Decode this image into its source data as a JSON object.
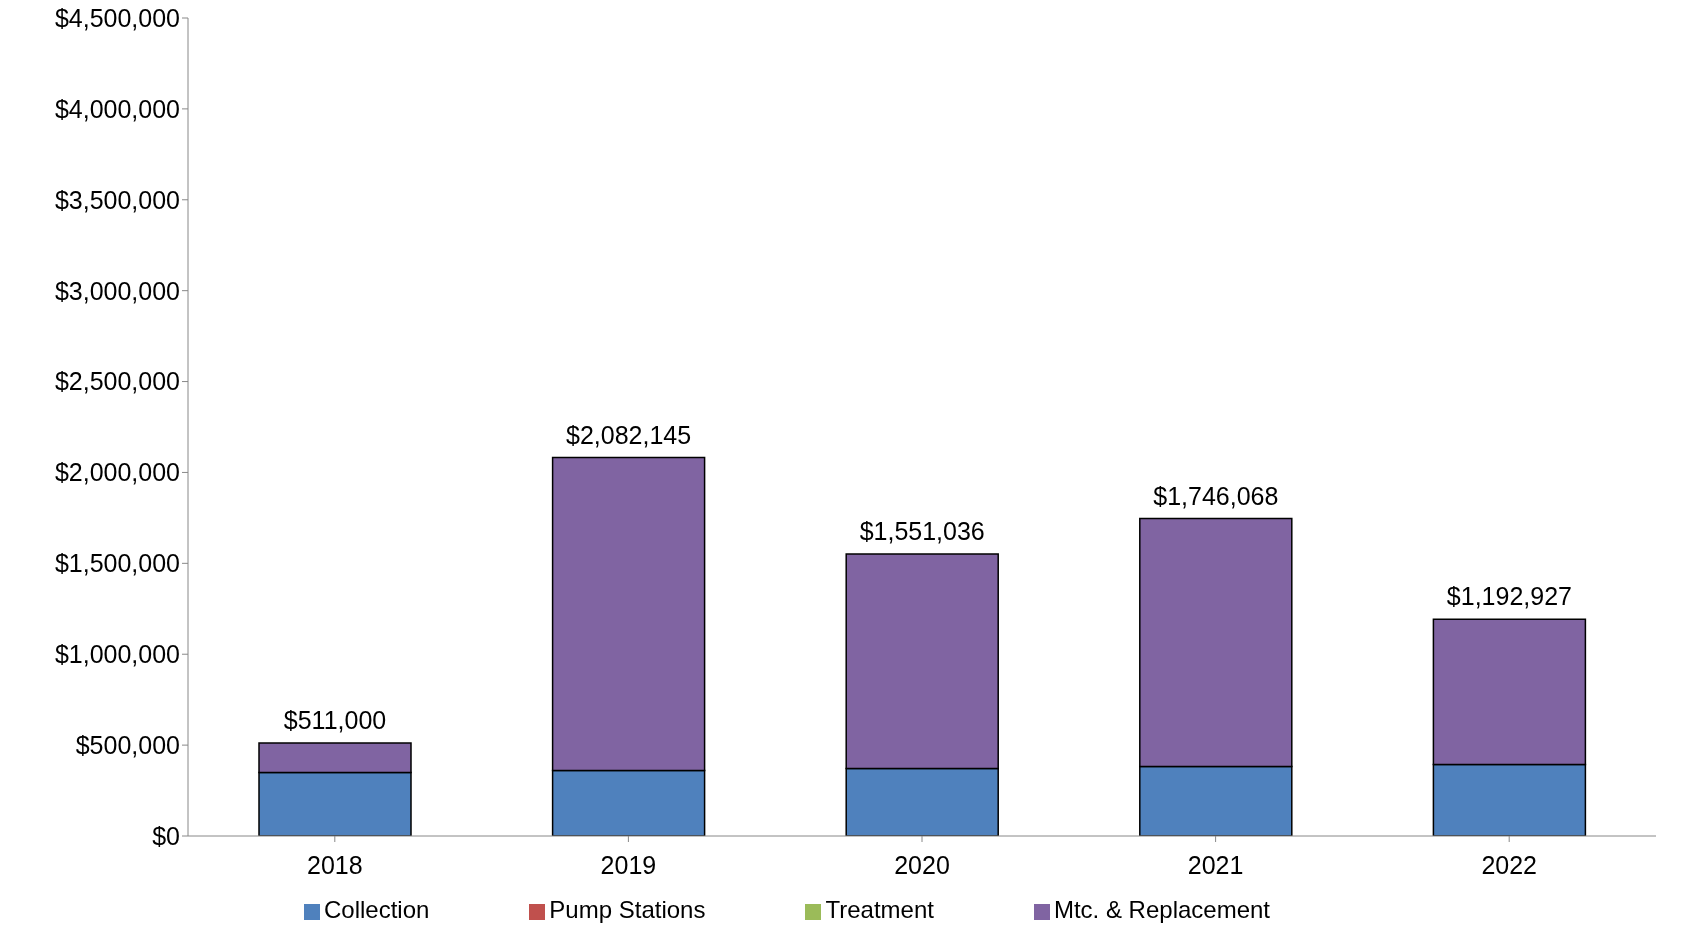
{
  "chart_data": {
    "type": "bar",
    "stacked": true,
    "categories": [
      "2018",
      "2019",
      "2020",
      "2021",
      "2022"
    ],
    "series": [
      {
        "name": "Collection",
        "color": "#4f81bd",
        "values": [
          350000,
          360000,
          371000,
          382000,
          394000
        ]
      },
      {
        "name": "Pump Stations",
        "color": "#c0504d",
        "values": [
          0,
          0,
          0,
          0,
          0
        ]
      },
      {
        "name": "Treatment",
        "color": "#9bbb59",
        "values": [
          0,
          0,
          0,
          0,
          0
        ]
      },
      {
        "name": "Mtc. & Replacement",
        "color": "#8064a2",
        "values": [
          161000,
          1722145,
          1180036,
          1364068,
          798927
        ]
      }
    ],
    "totals": [
      "$511,000",
      "$2,082,145",
      "$1,551,036",
      "$1,746,068",
      "$1,192,927"
    ],
    "ylim": [
      0,
      4500000
    ],
    "yticks": [
      {
        "value": 0,
        "label": "$0"
      },
      {
        "value": 500000,
        "label": "$500,000"
      },
      {
        "value": 1000000,
        "label": "$1,000,000"
      },
      {
        "value": 1500000,
        "label": "$1,500,000"
      },
      {
        "value": 2000000,
        "label": "$2,000,000"
      },
      {
        "value": 2500000,
        "label": "$2,500,000"
      },
      {
        "value": 3000000,
        "label": "$3,000,000"
      },
      {
        "value": 3500000,
        "label": "$3,500,000"
      },
      {
        "value": 4000000,
        "label": "$4,000,000"
      },
      {
        "value": 4500000,
        "label": "$4,500,000"
      }
    ],
    "grid": false,
    "legend": "bottom"
  }
}
